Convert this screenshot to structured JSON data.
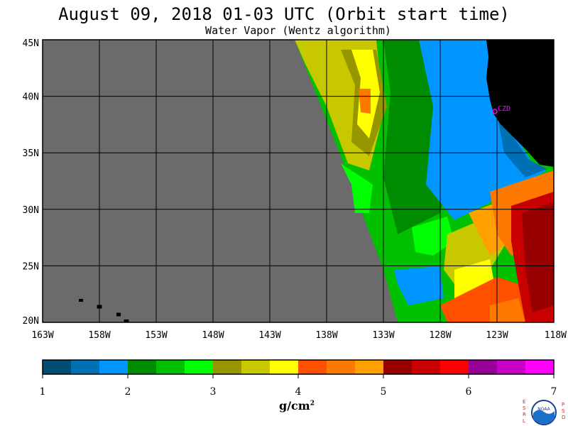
{
  "title": "August 09, 2018  01-03 UTC  (Orbit start time)",
  "subtitle": "Water Vapor (Wentz algorithm)",
  "map": {
    "lat_labels": [
      "45N",
      "40N",
      "35N",
      "30N",
      "25N",
      "20N"
    ],
    "lon_labels": [
      "163W",
      "158W",
      "153W",
      "148W",
      "143W",
      "138W",
      "133W",
      "128W",
      "123W",
      "118W"
    ],
    "lat_range": [
      20,
      45
    ],
    "lon_range": [
      -163,
      -118
    ],
    "station_label": "CZD",
    "colors": {
      "nodata": "#6b6b6b",
      "land": "#000000",
      "grid": "#000000",
      "station": "#ff00ff"
    }
  },
  "colorbar": {
    "tick_labels": [
      "1",
      "2",
      "3",
      "4",
      "5",
      "6",
      "7"
    ],
    "range": [
      1,
      7
    ],
    "colors": [
      "#004c73",
      "#0070b5",
      "#0096ff",
      "#008c00",
      "#00c000",
      "#00ff00",
      "#969600",
      "#c8c800",
      "#ffff00",
      "#ff5000",
      "#ff7800",
      "#ffa000",
      "#960000",
      "#c80000",
      "#ff0000",
      "#960096",
      "#c800c8",
      "#ff00ff"
    ],
    "unit_main": "g/cm",
    "unit_sup": "2"
  },
  "logo": {
    "left_letters": [
      "E",
      "S",
      "R",
      "L"
    ],
    "right_letters": [
      "P",
      "S",
      "D"
    ],
    "emblem_text": "NOAA"
  }
}
